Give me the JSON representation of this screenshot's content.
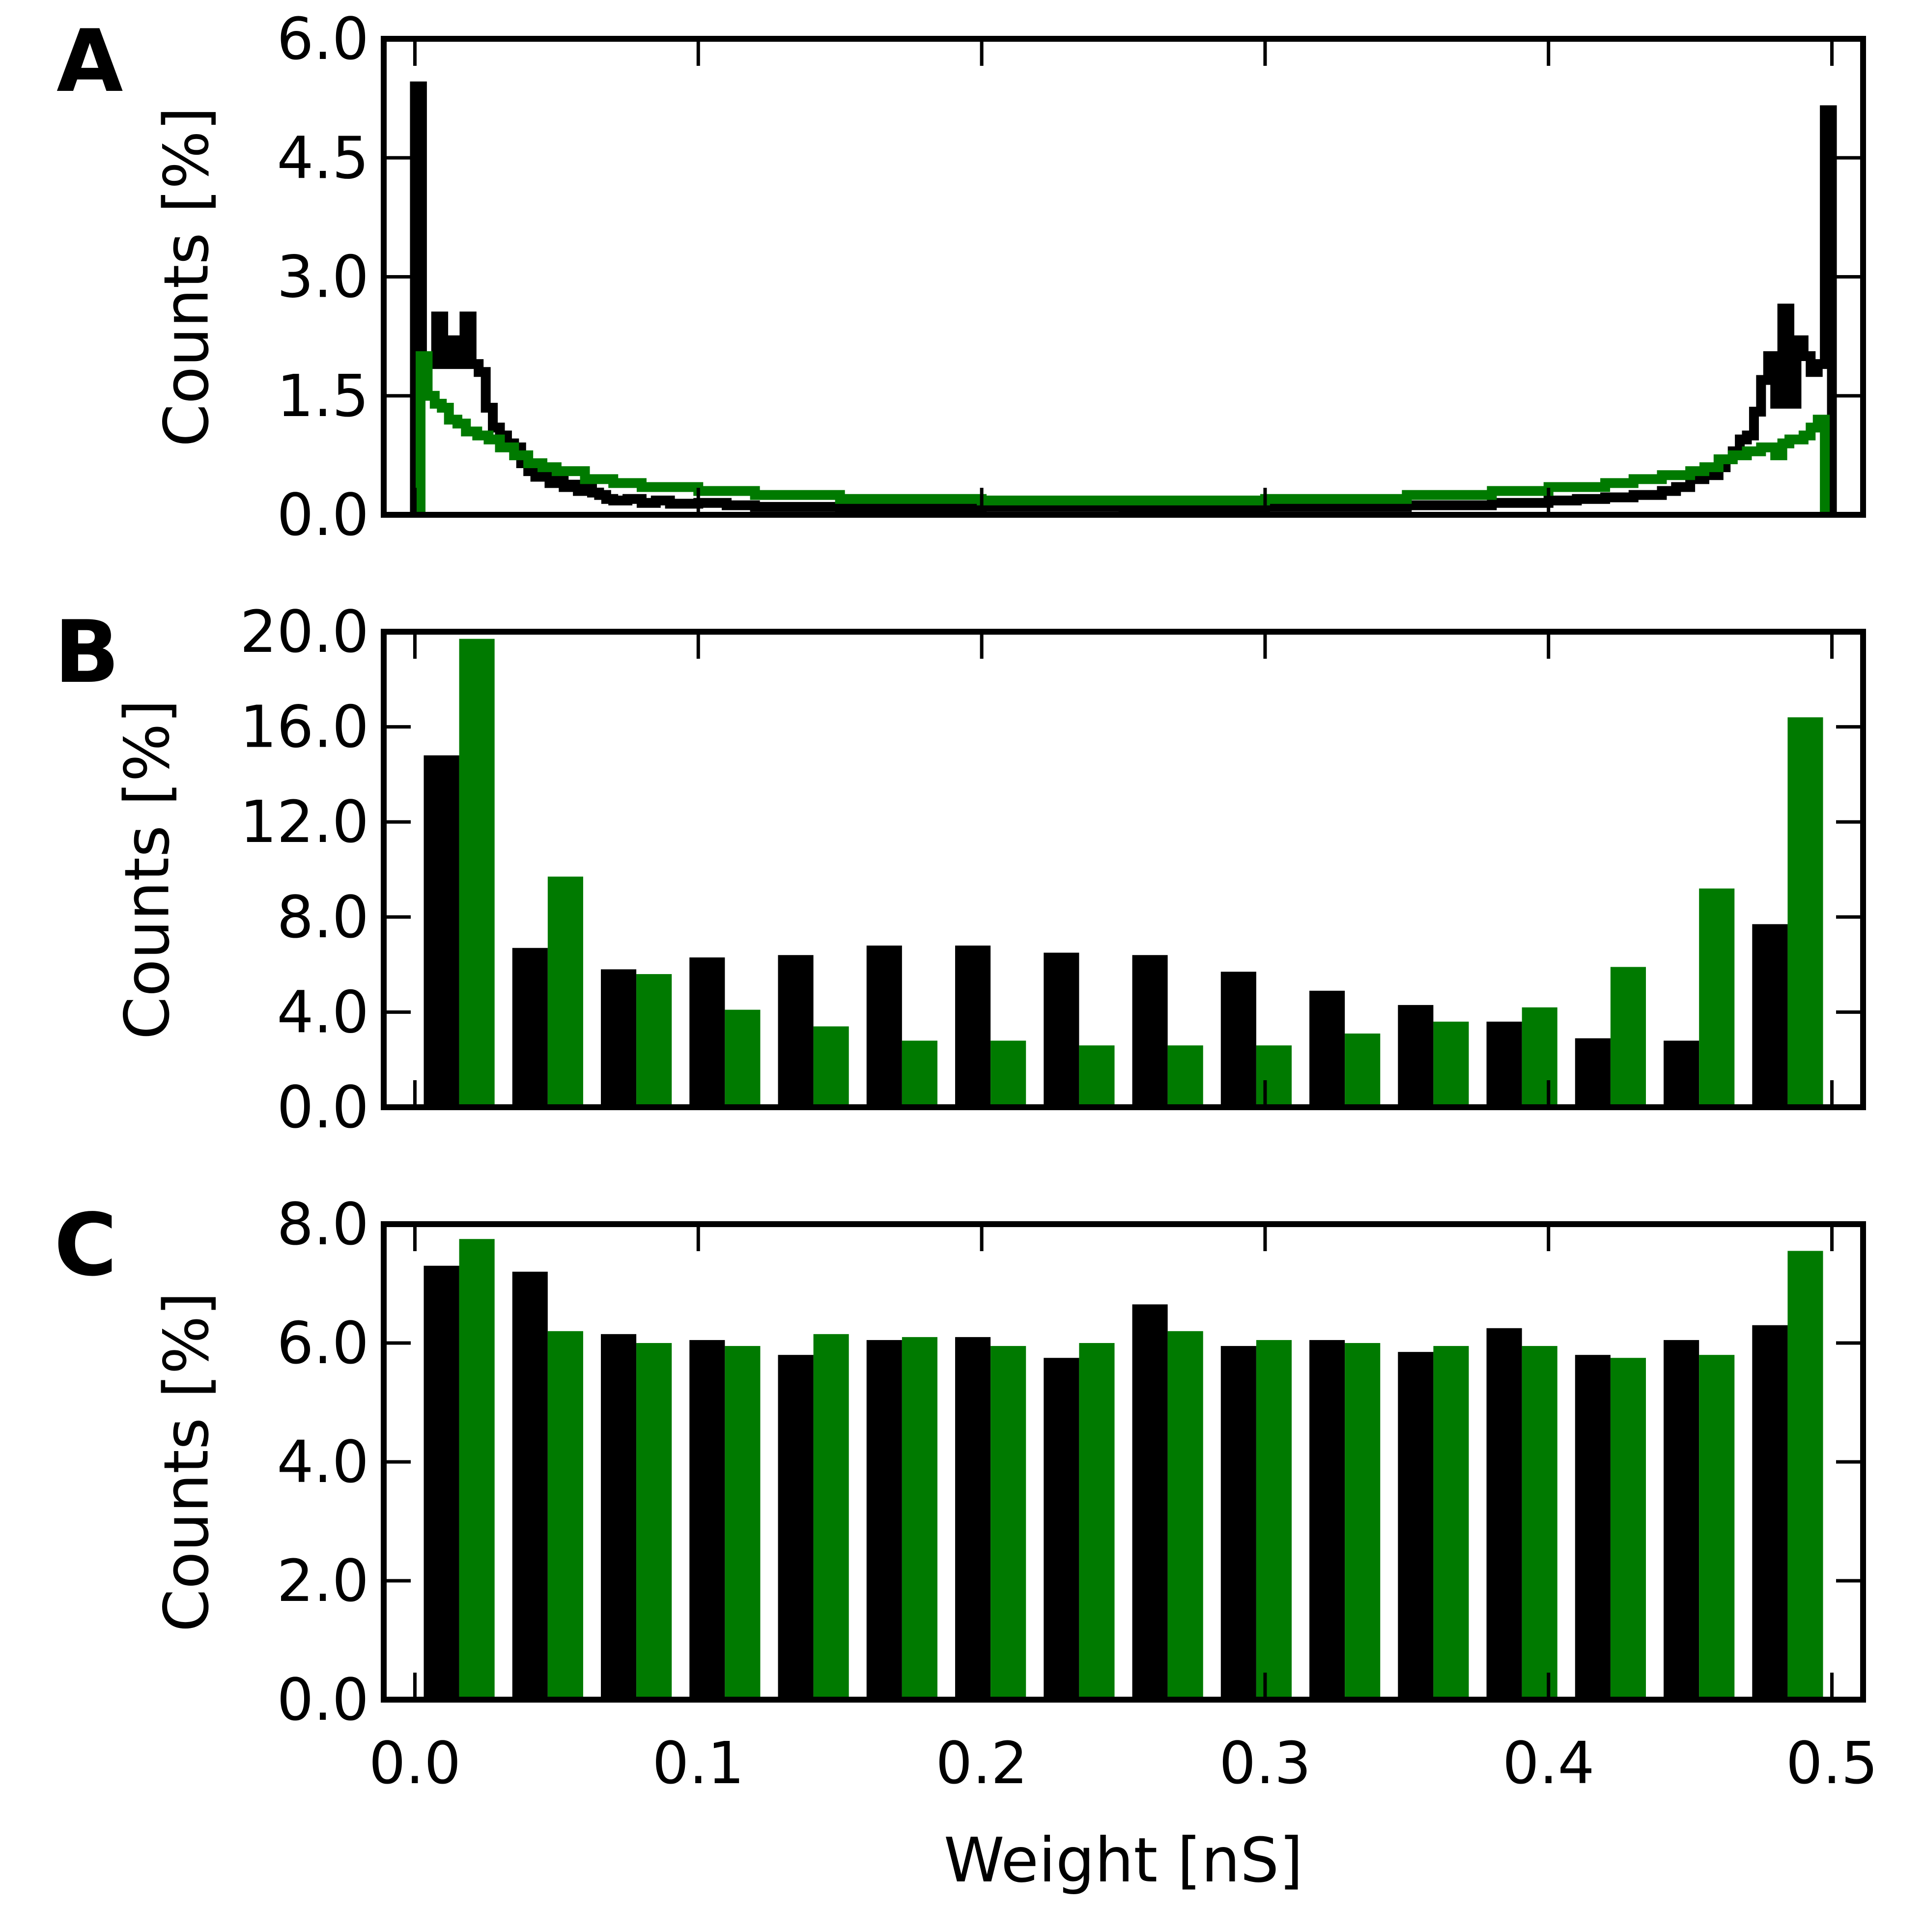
{
  "colors": {
    "black_series": "#000000",
    "green_series": "#007a00",
    "axes": "#000000"
  },
  "xaxis": {
    "label": "Weight [nS]",
    "ticks": [
      0.0,
      0.1,
      0.2,
      0.3,
      0.4,
      0.5
    ],
    "tick_labels": [
      "0.0",
      "0.1",
      "0.2",
      "0.3",
      "0.4",
      "0.5"
    ],
    "range": [
      -0.011,
      0.511
    ]
  },
  "chart_data": [
    {
      "panel": "A",
      "type": "line",
      "style": "step histogram",
      "ylabel": "Counts [%]",
      "ylim": [
        0,
        6.0
      ],
      "yticks": [
        0.0,
        1.5,
        3.0,
        4.5,
        6.0
      ],
      "ytick_labels": [
        "0.0",
        "1.5",
        "3.0",
        "4.5",
        "6.0"
      ],
      "xlim": [
        -0.011,
        0.511
      ],
      "xticks": [
        0.0,
        0.1,
        0.2,
        0.3,
        0.4,
        0.5
      ],
      "grid": false,
      "series": [
        {
          "color": "#000000",
          "points": [
            [
              0.0,
              0.0
            ],
            [
              0.0,
              5.4
            ],
            [
              0.0025,
              5.4
            ],
            [
              0.0025,
              2.0
            ],
            [
              0.005,
              2.0
            ],
            [
              0.005,
              1.9
            ],
            [
              0.0075,
              1.9
            ],
            [
              0.0075,
              2.5
            ],
            [
              0.01,
              2.5
            ],
            [
              0.01,
              1.9
            ],
            [
              0.0125,
              1.9
            ],
            [
              0.0125,
              2.2
            ],
            [
              0.015,
              2.2
            ],
            [
              0.015,
              1.9
            ],
            [
              0.0175,
              1.9
            ],
            [
              0.0175,
              2.5
            ],
            [
              0.02,
              2.5
            ],
            [
              0.02,
              1.9
            ],
            [
              0.0225,
              1.9
            ],
            [
              0.0225,
              1.8
            ],
            [
              0.025,
              1.8
            ],
            [
              0.025,
              1.35
            ],
            [
              0.0275,
              1.35
            ],
            [
              0.0275,
              1.1
            ],
            [
              0.03,
              1.1
            ],
            [
              0.03,
              1.0
            ],
            [
              0.0325,
              1.0
            ],
            [
              0.0325,
              0.9
            ],
            [
              0.035,
              0.9
            ],
            [
              0.035,
              0.85
            ],
            [
              0.0375,
              0.85
            ],
            [
              0.0375,
              0.65
            ],
            [
              0.04,
              0.65
            ],
            [
              0.04,
              0.55
            ],
            [
              0.0425,
              0.55
            ],
            [
              0.0425,
              0.48
            ],
            [
              0.045,
              0.48
            ],
            [
              0.045,
              0.5
            ],
            [
              0.0475,
              0.5
            ],
            [
              0.0475,
              0.4
            ],
            [
              0.05,
              0.4
            ],
            [
              0.05,
              0.45
            ],
            [
              0.0525,
              0.45
            ],
            [
              0.0525,
              0.35
            ],
            [
              0.055,
              0.35
            ],
            [
              0.055,
              0.38
            ],
            [
              0.0575,
              0.38
            ],
            [
              0.0575,
              0.3
            ],
            [
              0.06,
              0.3
            ],
            [
              0.06,
              0.33
            ],
            [
              0.0625,
              0.33
            ],
            [
              0.0625,
              0.28
            ],
            [
              0.065,
              0.28
            ],
            [
              0.065,
              0.25
            ],
            [
              0.0675,
              0.25
            ],
            [
              0.0675,
              0.2
            ],
            [
              0.07,
              0.2
            ],
            [
              0.07,
              0.18
            ],
            [
              0.075,
              0.18
            ],
            [
              0.075,
              0.2
            ],
            [
              0.08,
              0.2
            ],
            [
              0.08,
              0.15
            ],
            [
              0.085,
              0.15
            ],
            [
              0.085,
              0.18
            ],
            [
              0.09,
              0.18
            ],
            [
              0.09,
              0.14
            ],
            [
              0.1,
              0.14
            ],
            [
              0.1,
              0.15
            ],
            [
              0.11,
              0.15
            ],
            [
              0.11,
              0.12
            ],
            [
              0.12,
              0.12
            ],
            [
              0.12,
              0.1
            ],
            [
              0.15,
              0.1
            ],
            [
              0.15,
              0.08
            ],
            [
              0.2,
              0.08
            ],
            [
              0.2,
              0.1
            ],
            [
              0.25,
              0.1
            ],
            [
              0.25,
              0.08
            ],
            [
              0.3,
              0.08
            ],
            [
              0.3,
              0.1
            ],
            [
              0.35,
              0.1
            ],
            [
              0.35,
              0.12
            ],
            [
              0.38,
              0.12
            ],
            [
              0.38,
              0.15
            ],
            [
              0.4,
              0.15
            ],
            [
              0.4,
              0.18
            ],
            [
              0.41,
              0.18
            ],
            [
              0.41,
              0.2
            ],
            [
              0.42,
              0.2
            ],
            [
              0.42,
              0.22
            ],
            [
              0.43,
              0.22
            ],
            [
              0.43,
              0.25
            ],
            [
              0.44,
              0.25
            ],
            [
              0.44,
              0.3
            ],
            [
              0.445,
              0.3
            ],
            [
              0.445,
              0.35
            ],
            [
              0.45,
              0.35
            ],
            [
              0.45,
              0.45
            ],
            [
              0.455,
              0.45
            ],
            [
              0.455,
              0.5
            ],
            [
              0.46,
              0.5
            ],
            [
              0.46,
              0.6
            ],
            [
              0.4625,
              0.6
            ],
            [
              0.4625,
              0.7
            ],
            [
              0.465,
              0.7
            ],
            [
              0.465,
              0.8
            ],
            [
              0.4675,
              0.8
            ],
            [
              0.4675,
              0.95
            ],
            [
              0.47,
              0.95
            ],
            [
              0.47,
              1.0
            ],
            [
              0.4725,
              1.0
            ],
            [
              0.4725,
              1.3
            ],
            [
              0.475,
              1.3
            ],
            [
              0.475,
              1.7
            ],
            [
              0.4775,
              1.7
            ],
            [
              0.4775,
              2.0
            ],
            [
              0.48,
              2.0
            ],
            [
              0.48,
              1.4
            ],
            [
              0.4825,
              1.4
            ],
            [
              0.4825,
              2.6
            ],
            [
              0.485,
              2.6
            ],
            [
              0.485,
              1.4
            ],
            [
              0.4875,
              1.4
            ],
            [
              0.4875,
              2.2
            ],
            [
              0.49,
              2.2
            ],
            [
              0.49,
              2.0
            ],
            [
              0.4925,
              2.0
            ],
            [
              0.4925,
              1.8
            ],
            [
              0.495,
              1.8
            ],
            [
              0.495,
              1.9
            ],
            [
              0.4975,
              1.9
            ],
            [
              0.4975,
              5.1
            ],
            [
              0.5,
              5.1
            ],
            [
              0.5,
              0.0
            ]
          ]
        },
        {
          "color": "#007a00",
          "points": [
            [
              0.002,
              0.0
            ],
            [
              0.002,
              2.0
            ],
            [
              0.0045,
              2.0
            ],
            [
              0.0045,
              1.5
            ],
            [
              0.007,
              1.5
            ],
            [
              0.007,
              1.4
            ],
            [
              0.0095,
              1.4
            ],
            [
              0.0095,
              1.35
            ],
            [
              0.012,
              1.35
            ],
            [
              0.012,
              1.2
            ],
            [
              0.015,
              1.2
            ],
            [
              0.015,
              1.15
            ],
            [
              0.018,
              1.15
            ],
            [
              0.018,
              1.05
            ],
            [
              0.022,
              1.05
            ],
            [
              0.022,
              1.0
            ],
            [
              0.026,
              1.0
            ],
            [
              0.026,
              0.95
            ],
            [
              0.03,
              0.95
            ],
            [
              0.03,
              0.85
            ],
            [
              0.035,
              0.85
            ],
            [
              0.035,
              0.75
            ],
            [
              0.04,
              0.75
            ],
            [
              0.04,
              0.65
            ],
            [
              0.045,
              0.65
            ],
            [
              0.045,
              0.6
            ],
            [
              0.05,
              0.6
            ],
            [
              0.05,
              0.55
            ],
            [
              0.06,
              0.55
            ],
            [
              0.06,
              0.45
            ],
            [
              0.07,
              0.45
            ],
            [
              0.07,
              0.4
            ],
            [
              0.08,
              0.4
            ],
            [
              0.08,
              0.35
            ],
            [
              0.1,
              0.35
            ],
            [
              0.1,
              0.3
            ],
            [
              0.12,
              0.3
            ],
            [
              0.12,
              0.25
            ],
            [
              0.15,
              0.25
            ],
            [
              0.15,
              0.2
            ],
            [
              0.2,
              0.2
            ],
            [
              0.2,
              0.18
            ],
            [
              0.3,
              0.18
            ],
            [
              0.3,
              0.2
            ],
            [
              0.35,
              0.2
            ],
            [
              0.35,
              0.25
            ],
            [
              0.38,
              0.25
            ],
            [
              0.38,
              0.3
            ],
            [
              0.4,
              0.3
            ],
            [
              0.4,
              0.35
            ],
            [
              0.42,
              0.35
            ],
            [
              0.42,
              0.4
            ],
            [
              0.43,
              0.4
            ],
            [
              0.43,
              0.45
            ],
            [
              0.44,
              0.45
            ],
            [
              0.44,
              0.5
            ],
            [
              0.45,
              0.5
            ],
            [
              0.45,
              0.55
            ],
            [
              0.455,
              0.55
            ],
            [
              0.455,
              0.6
            ],
            [
              0.46,
              0.6
            ],
            [
              0.46,
              0.7
            ],
            [
              0.465,
              0.7
            ],
            [
              0.465,
              0.75
            ],
            [
              0.47,
              0.75
            ],
            [
              0.47,
              0.8
            ],
            [
              0.475,
              0.8
            ],
            [
              0.475,
              0.85
            ],
            [
              0.48,
              0.85
            ],
            [
              0.48,
              0.75
            ],
            [
              0.4825,
              0.75
            ],
            [
              0.4825,
              0.9
            ],
            [
              0.485,
              0.9
            ],
            [
              0.485,
              0.95
            ],
            [
              0.49,
              0.95
            ],
            [
              0.49,
              1.0
            ],
            [
              0.4925,
              1.0
            ],
            [
              0.4925,
              1.1
            ],
            [
              0.495,
              1.1
            ],
            [
              0.495,
              1.2
            ],
            [
              0.4975,
              1.2
            ],
            [
              0.4975,
              0.0
            ]
          ]
        }
      ]
    },
    {
      "panel": "B",
      "type": "bar",
      "ylabel": "Counts [%]",
      "ylim": [
        0,
        20.0
      ],
      "yticks": [
        0.0,
        4.0,
        8.0,
        12.0,
        16.0,
        20.0
      ],
      "ytick_labels": [
        "0.0",
        "4.0",
        "8.0",
        "12.0",
        "16.0",
        "20.0"
      ],
      "xlim": [
        -0.011,
        0.511
      ],
      "xticks": [
        0.0,
        0.1,
        0.2,
        0.3,
        0.4,
        0.5
      ],
      "bin_width": 0.03125,
      "grid": false,
      "x": [
        0.015625,
        0.046875,
        0.078125,
        0.109375,
        0.140625,
        0.171875,
        0.203125,
        0.234375,
        0.265625,
        0.296875,
        0.328125,
        0.359375,
        0.390625,
        0.421875,
        0.453125,
        0.484375
      ],
      "series": [
        {
          "color": "#000000",
          "values": [
            14.8,
            6.7,
            5.8,
            6.3,
            6.4,
            6.8,
            6.8,
            6.5,
            6.4,
            5.7,
            4.9,
            4.3,
            3.6,
            2.9,
            2.8,
            7.7
          ]
        },
        {
          "color": "#007a00",
          "values": [
            19.7,
            9.7,
            5.6,
            4.1,
            3.4,
            2.8,
            2.8,
            2.6,
            2.6,
            2.6,
            3.1,
            3.6,
            4.2,
            5.9,
            9.2,
            16.4
          ]
        }
      ]
    },
    {
      "panel": "C",
      "type": "bar",
      "ylabel": "Counts [%]",
      "ylim": [
        0,
        8.0
      ],
      "yticks": [
        0.0,
        2.0,
        4.0,
        6.0,
        8.0
      ],
      "ytick_labels": [
        "0.0",
        "2.0",
        "4.0",
        "6.0",
        "8.0"
      ],
      "xlim": [
        -0.011,
        0.511
      ],
      "xticks": [
        0.0,
        0.1,
        0.2,
        0.3,
        0.4,
        0.5
      ],
      "bin_width": 0.03125,
      "grid": false,
      "x": [
        0.015625,
        0.046875,
        0.078125,
        0.109375,
        0.140625,
        0.171875,
        0.203125,
        0.234375,
        0.265625,
        0.296875,
        0.328125,
        0.359375,
        0.390625,
        0.421875,
        0.453125,
        0.484375
      ],
      "series": [
        {
          "color": "#000000",
          "values": [
            7.3,
            7.2,
            6.15,
            6.05,
            5.8,
            6.05,
            6.1,
            5.75,
            6.65,
            5.95,
            6.05,
            5.85,
            6.25,
            5.8,
            6.05,
            6.3
          ]
        },
        {
          "color": "#007a00",
          "values": [
            7.75,
            6.2,
            6.0,
            5.95,
            6.15,
            6.1,
            5.95,
            6.0,
            6.2,
            6.05,
            6.0,
            5.95,
            5.95,
            5.75,
            5.8,
            7.55
          ]
        }
      ]
    }
  ]
}
